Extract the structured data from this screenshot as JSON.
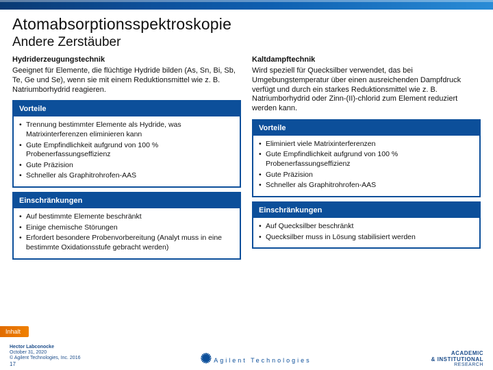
{
  "colors": {
    "brandBlue": "#0c4f9a",
    "accentOrange": "#f08000",
    "text": "#111111",
    "white": "#ffffff"
  },
  "typography": {
    "title_fontsize": 23,
    "subtitle_fontsize": 19,
    "body_fontsize": 11,
    "bullet_fontsize": 10.5
  },
  "title": "Atomabsorptionsspektroskopie",
  "subtitle": "Andere Zerstäuber",
  "left": {
    "heading": "Hydriderzeugungstechnik",
    "paragraph": "Geeignet für Elemente, die flüchtige Hydride bilden (As, Sn, Bi, Sb, Te, Ge und Se), wenn sie mit einem Reduktionsmittel wie z. B. Natriumborhydrid reagieren.",
    "advantages_label": "Vorteile",
    "advantages": [
      "Trennung bestimmter Elemente als Hydride, was Matrixinterferenzen eliminieren kann",
      "Gute Empfindlichkeit aufgrund von 100 % Probenerfassungseffizienz",
      "Gute Präzision",
      "Schneller als Graphitrohrofen-AAS"
    ],
    "limitations_label": "Einschränkungen",
    "limitations": [
      "Auf bestimmte Elemente beschränkt",
      "Einige chemische Störungen",
      "Erfordert besondere Probenvorbereitung (Analyt muss in eine bestimmte Oxidationsstufe gebracht werden)"
    ]
  },
  "right": {
    "heading": "Kaltdampftechnik",
    "paragraph": "Wird speziell für Quecksilber verwendet, das bei Umgebungstemperatur über einen ausreichenden Dampfdruck verfügt und durch ein starkes Reduktionsmittel wie z. B. Natriumborhydrid oder Zinn-(II)-chlorid zum Element reduziert werden kann.",
    "advantages_label": "Vorteile",
    "advantages": [
      "Eliminiert viele Matrixinterferenzen",
      "Gute Empfindlichkeit aufgrund von 100 % Probenerfassungseffizienz",
      "Gute Präzision",
      "Schneller als Graphitrohrofen-AAS"
    ],
    "limitations_label": "Einschränkungen",
    "limitations": [
      "Auf Quecksilber beschränkt",
      "Quecksilber muss in Lösung stabilisiert werden"
    ]
  },
  "inhalt_label": "Inhalt",
  "footer": {
    "author": "Hector Labconocke",
    "date": "October 31, 2020",
    "copyright": "© Agilent Technologies, Inc. 2016",
    "page": "17",
    "agilent": "Agilent Technologies",
    "right_top": "ACADEMIC",
    "right_mid": "& INSTITUTIONAL",
    "right_bot": "RESEARCH"
  }
}
